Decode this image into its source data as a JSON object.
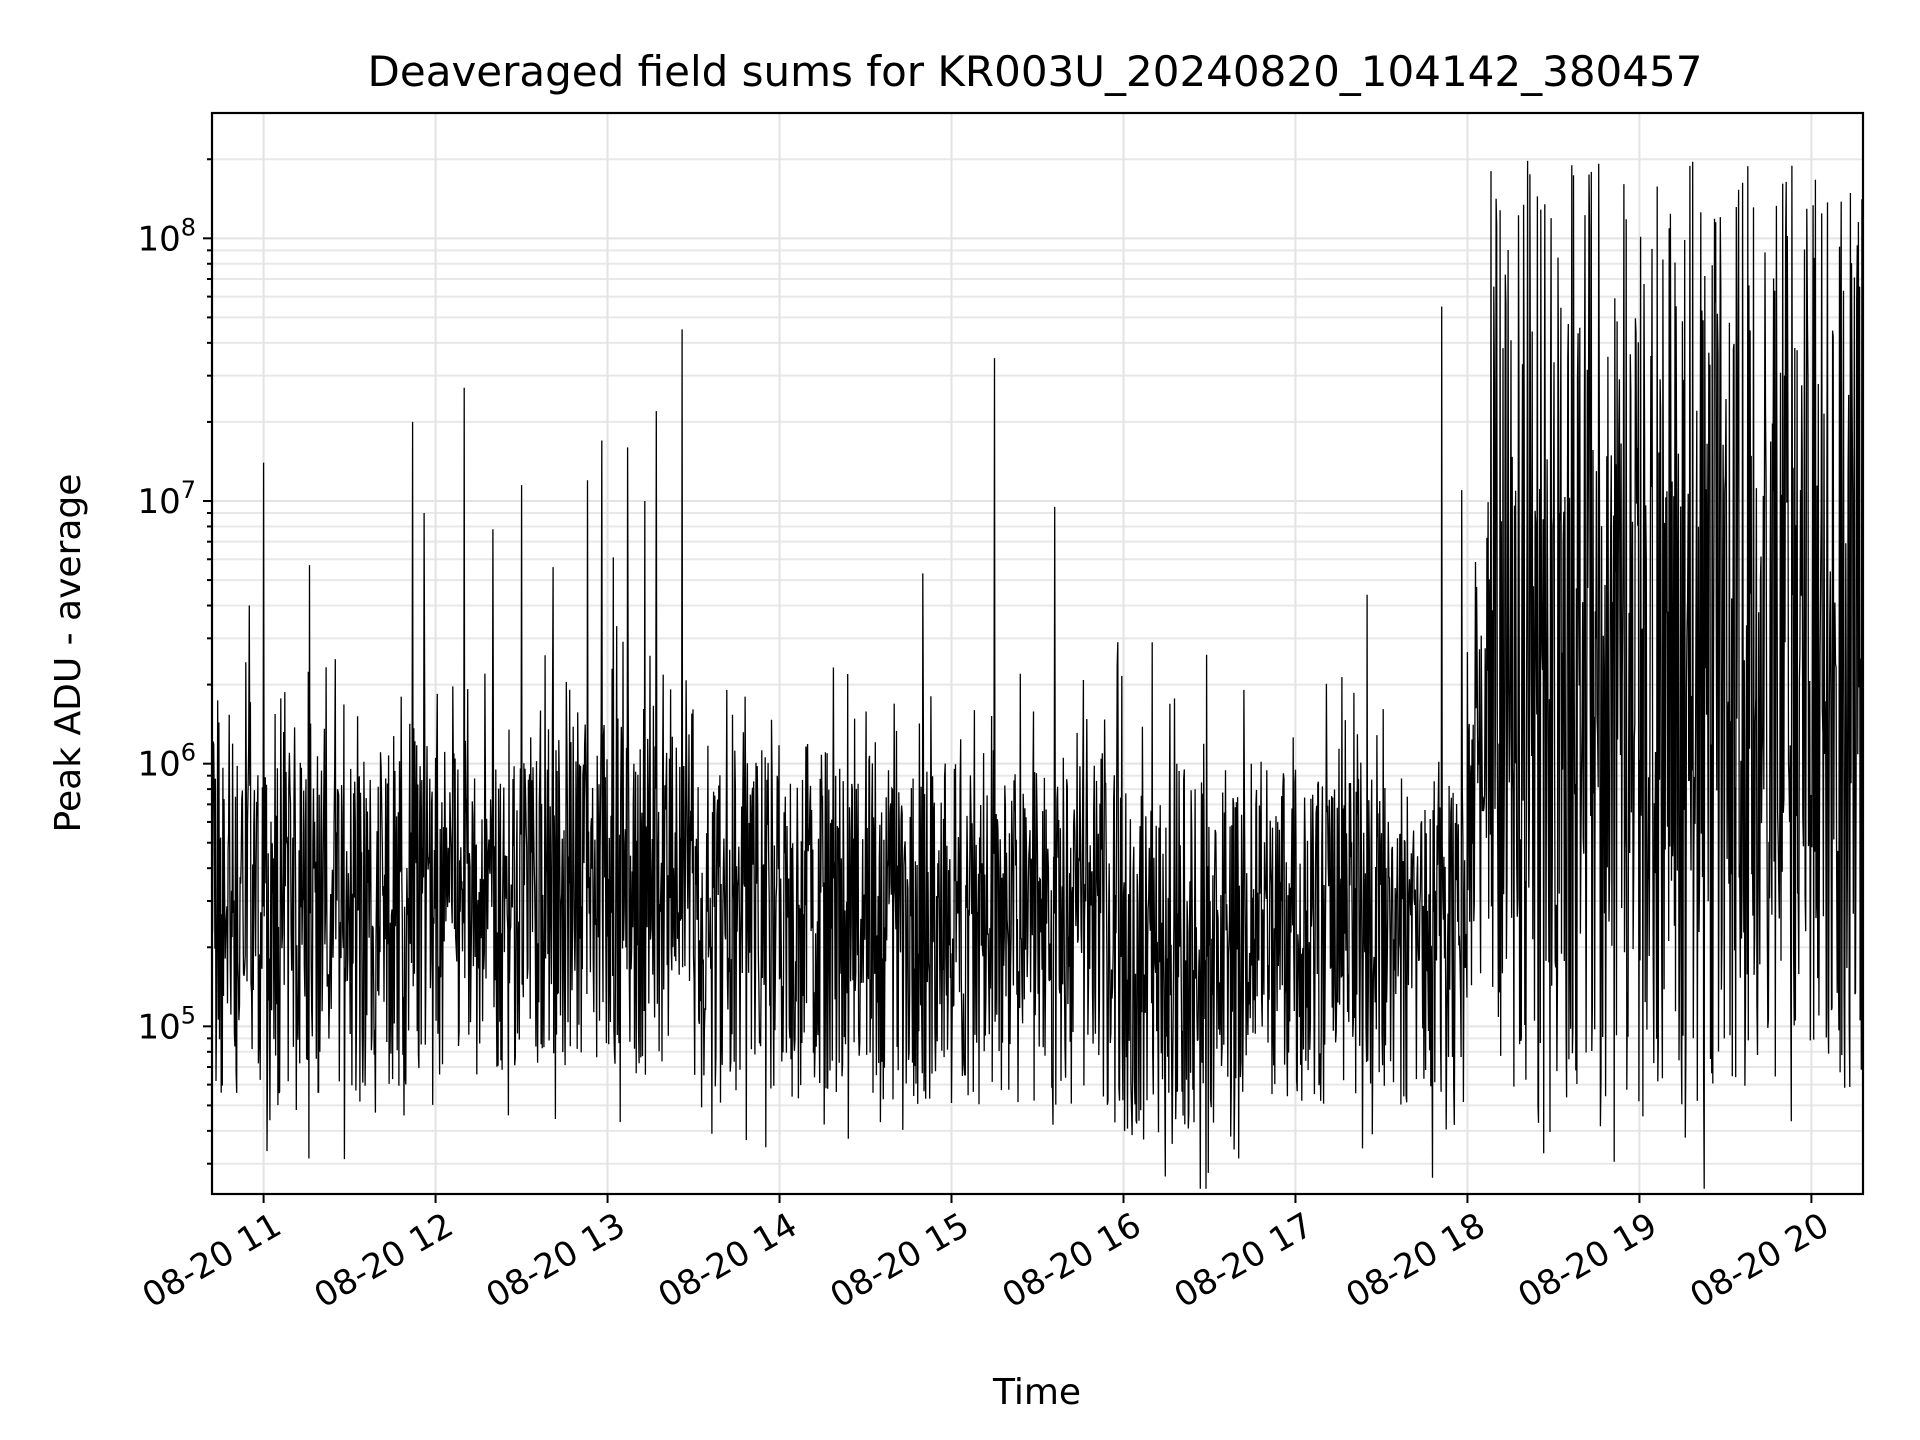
{
  "chart_data": {
    "type": "line",
    "title": "Deaveraged field sums for KR003U_20240820_104142_380457",
    "xlabel": "Time",
    "ylabel": "Peak ADU - average",
    "yscale": "log",
    "ylim": [
      23000,
      300000000
    ],
    "xlim": [
      "2024-08-20 10:42",
      "2024-08-20 20:18"
    ],
    "grid": "on (major and minor)",
    "x_ticks": [
      {
        "t": "2024-08-20 11:00",
        "label": "08-20 11"
      },
      {
        "t": "2024-08-20 12:00",
        "label": "08-20 12"
      },
      {
        "t": "2024-08-20 13:00",
        "label": "08-20 13"
      },
      {
        "t": "2024-08-20 14:00",
        "label": "08-20 14"
      },
      {
        "t": "2024-08-20 15:00",
        "label": "08-20 15"
      },
      {
        "t": "2024-08-20 16:00",
        "label": "08-20 16"
      },
      {
        "t": "2024-08-20 17:00",
        "label": "08-20 17"
      },
      {
        "t": "2024-08-20 18:00",
        "label": "08-20 18"
      },
      {
        "t": "2024-08-20 19:00",
        "label": "08-20 19"
      },
      {
        "t": "2024-08-20 20:00",
        "label": "08-20 20"
      }
    ],
    "y_ticks": [
      {
        "value": 100000,
        "base": "10",
        "exp": "5"
      },
      {
        "value": 1000000,
        "base": "10",
        "exp": "6"
      },
      {
        "value": 10000000,
        "base": "10",
        "exp": "7"
      },
      {
        "value": 100000000,
        "base": "10",
        "exp": "8"
      }
    ],
    "series": [
      {
        "color": "#000000",
        "baseline_segments": [
          {
            "start": "2024-08-20 10:42",
            "end": "2024-08-20 12:30",
            "median": 300000,
            "low": 55000,
            "high": 1000000
          },
          {
            "start": "2024-08-20 12:30",
            "end": "2024-08-20 13:30",
            "median": 400000,
            "low": 60000,
            "high": 1100000
          },
          {
            "start": "2024-08-20 13:30",
            "end": "2024-08-20 16:00",
            "median": 280000,
            "low": 50000,
            "high": 900000
          },
          {
            "start": "2024-08-20 16:00",
            "end": "2024-08-20 16:45",
            "median": 200000,
            "low": 38000,
            "high": 800000
          },
          {
            "start": "2024-08-20 16:45",
            "end": "2024-08-20 18:00",
            "median": 250000,
            "low": 50000,
            "high": 900000
          },
          {
            "start": "2024-08-20 18:00",
            "end": "2024-08-20 18:10",
            "median": 1000000,
            "low": 300000,
            "high": 10000000
          },
          {
            "start": "2024-08-20 18:10",
            "end": "2024-08-20 20:18",
            "median": 600000,
            "low": 60000,
            "high": 5000000
          }
        ],
        "spikes": [
          {
            "t": "2024-08-20 10:55",
            "value": 4000000
          },
          {
            "t": "2024-08-20 11:00",
            "value": 14000000
          },
          {
            "t": "2024-08-20 11:16",
            "value": 5700000
          },
          {
            "t": "2024-08-20 11:25",
            "value": 2500000
          },
          {
            "t": "2024-08-20 11:48",
            "value": 1800000
          },
          {
            "t": "2024-08-20 11:52",
            "value": 20000000
          },
          {
            "t": "2024-08-20 11:56",
            "value": 9000000
          },
          {
            "t": "2024-08-20 12:10",
            "value": 27000000
          },
          {
            "t": "2024-08-20 12:20",
            "value": 7800000
          },
          {
            "t": "2024-08-20 12:30",
            "value": 11500000
          },
          {
            "t": "2024-08-20 12:41",
            "value": 5600000
          },
          {
            "t": "2024-08-20 12:53",
            "value": 12000000
          },
          {
            "t": "2024-08-20 12:58",
            "value": 17000000
          },
          {
            "t": "2024-08-20 13:02",
            "value": 6100000
          },
          {
            "t": "2024-08-20 13:07",
            "value": 16000000
          },
          {
            "t": "2024-08-20 13:13",
            "value": 10000000
          },
          {
            "t": "2024-08-20 13:17",
            "value": 22000000
          },
          {
            "t": "2024-08-20 13:26",
            "value": 45000000
          },
          {
            "t": "2024-08-20 13:48",
            "value": 1800000
          },
          {
            "t": "2024-08-20 14:50",
            "value": 5300000
          },
          {
            "t": "2024-08-20 15:08",
            "value": 1600000
          },
          {
            "t": "2024-08-20 15:15",
            "value": 35000000
          },
          {
            "t": "2024-08-20 15:24",
            "value": 2200000
          },
          {
            "t": "2024-08-20 15:36",
            "value": 9500000
          },
          {
            "t": "2024-08-20 15:58",
            "value": 2900000
          },
          {
            "t": "2024-08-20 16:10",
            "value": 2900000
          },
          {
            "t": "2024-08-20 16:29",
            "value": 2600000
          },
          {
            "t": "2024-08-20 17:25",
            "value": 4400000
          },
          {
            "t": "2024-08-20 17:51",
            "value": 55000000
          },
          {
            "t": "2024-08-20 17:58",
            "value": 11000000
          },
          {
            "t": "2024-08-20 18:15",
            "value": 4100000
          },
          {
            "t": "2024-08-20 18:18",
            "value": 23000000
          },
          {
            "t": "2024-08-20 18:24",
            "value": 2600000
          },
          {
            "t": "2024-08-20 18:29",
            "value": 28000000
          },
          {
            "t": "2024-08-20 18:45",
            "value": 13000000
          },
          {
            "t": "2024-08-20 18:51",
            "value": 8800000
          }
        ],
        "dense_segment": {
          "start": "2024-08-20 18:00",
          "end": "2024-08-20 20:18",
          "peak_max": 200000000,
          "trough_min": 40000
        }
      }
    ]
  }
}
